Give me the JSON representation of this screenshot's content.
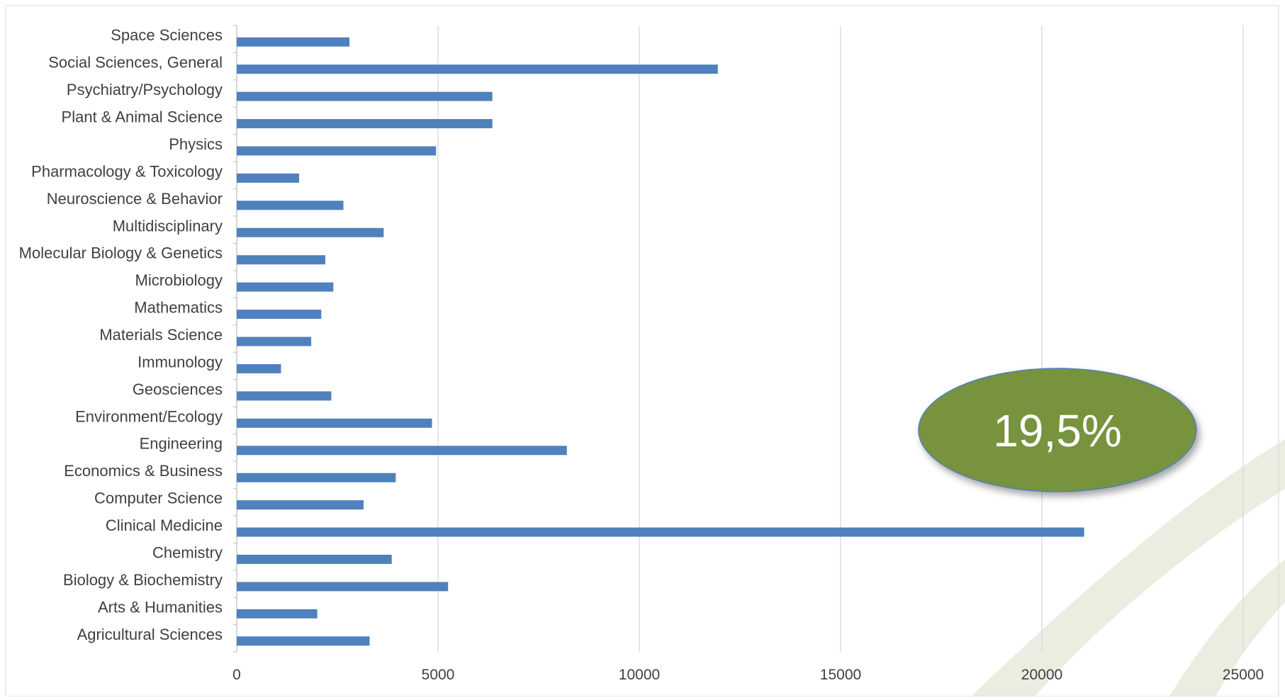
{
  "chart_data": {
    "type": "bar",
    "orientation": "horizontal",
    "categories": [
      "Space Sciences",
      "Social Sciences, General",
      "Psychiatry/Psychology",
      "Plant & Animal Science",
      "Physics",
      "Pharmacology & Toxicology",
      "Neuroscience & Behavior",
      "Multidisciplinary",
      "Molecular Biology & Genetics",
      "Microbiology",
      "Mathematics",
      "Materials Science",
      "Immunology",
      "Geosciences",
      "Environment/Ecology",
      "Engineering",
      "Economics & Business",
      "Computer Science",
      "Clinical Medicine",
      "Chemistry",
      "Biology & Biochemistry",
      "Arts & Humanities",
      "Agricultural Sciences"
    ],
    "values": [
      2800,
      11950,
      6350,
      6350,
      4950,
      1550,
      2650,
      3650,
      2200,
      2400,
      2100,
      1850,
      1100,
      2350,
      4850,
      8200,
      3950,
      3150,
      21050,
      3850,
      5250,
      2000,
      3300
    ],
    "xlim": [
      0,
      25000
    ],
    "xticks": [
      "0",
      "5000",
      "10000",
      "15000",
      "20000",
      "25000"
    ],
    "grid": "vertical",
    "bar_color": "#4f81bd",
    "legend": "none"
  },
  "callout": {
    "text": "19,5%",
    "fill": "#77933c",
    "stroke": "#4f81bd"
  },
  "decoration": {
    "swoosh_color": "#e9eee0"
  }
}
